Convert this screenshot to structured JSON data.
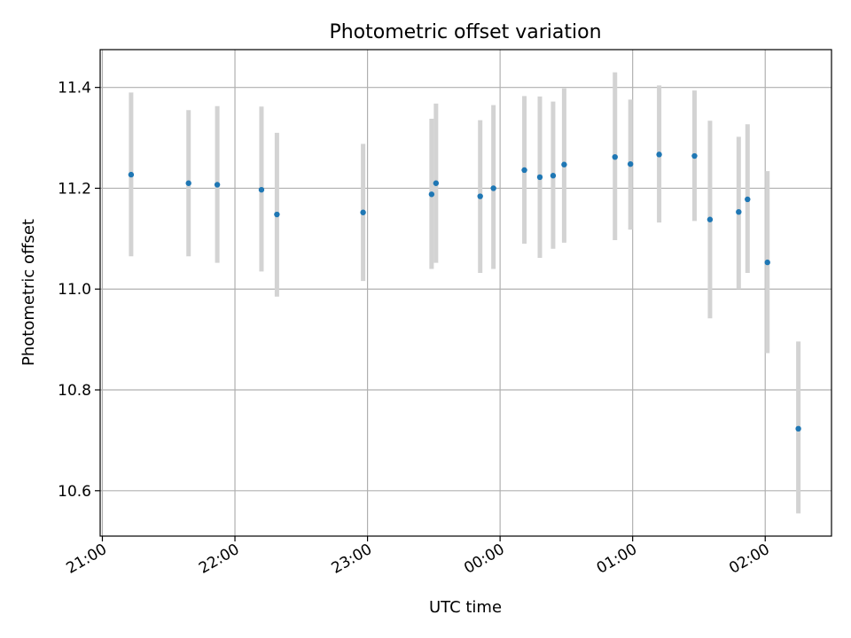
{
  "chart_data": {
    "type": "scatter",
    "title": "Photometric offset variation",
    "xlabel": "UTC time",
    "ylabel": "Photometric offset",
    "xlim": [
      "20:59",
      "02:30"
    ],
    "ylim": [
      10.51,
      11.475
    ],
    "xticks": [
      {
        "t": "21:00",
        "label": "21:00"
      },
      {
        "t": "22:00",
        "label": "22:00"
      },
      {
        "t": "23:00",
        "label": "23:00"
      },
      {
        "t": "00:00",
        "label": "00:00"
      },
      {
        "t": "01:00",
        "label": "01:00"
      },
      {
        "t": "02:00",
        "label": "02:00"
      }
    ],
    "yticks": [
      {
        "v": 10.6,
        "label": "10.6"
      },
      {
        "v": 10.8,
        "label": "10.8"
      },
      {
        "v": 11.0,
        "label": "11.0"
      },
      {
        "v": 11.2,
        "label": "11.2"
      },
      {
        "v": 11.4,
        "label": "11.4"
      }
    ],
    "grid": true,
    "x_time_order": [
      "20:59",
      "21:00",
      "22:00",
      "23:00",
      "00:00",
      "01:00",
      "02:00",
      "02:30"
    ],
    "points": [
      {
        "t": "21:13",
        "y": 11.227,
        "lo": 11.065,
        "hi": 11.39
      },
      {
        "t": "21:39",
        "y": 11.21,
        "lo": 11.065,
        "hi": 11.355
      },
      {
        "t": "21:52",
        "y": 11.207,
        "lo": 11.052,
        "hi": 11.363
      },
      {
        "t": "22:12",
        "y": 11.197,
        "lo": 11.035,
        "hi": 11.362
      },
      {
        "t": "22:19",
        "y": 11.148,
        "lo": 10.985,
        "hi": 11.31
      },
      {
        "t": "22:58",
        "y": 11.152,
        "lo": 11.016,
        "hi": 11.288
      },
      {
        "t": "23:29",
        "y": 11.188,
        "lo": 11.04,
        "hi": 11.338
      },
      {
        "t": "23:31",
        "y": 11.21,
        "lo": 11.052,
        "hi": 11.368
      },
      {
        "t": "23:51",
        "y": 11.184,
        "lo": 11.032,
        "hi": 11.335
      },
      {
        "t": "23:57",
        "y": 11.2,
        "lo": 11.04,
        "hi": 11.365
      },
      {
        "t": "00:11",
        "y": 11.236,
        "lo": 11.09,
        "hi": 11.383
      },
      {
        "t": "00:18",
        "y": 11.222,
        "lo": 11.062,
        "hi": 11.382
      },
      {
        "t": "00:24",
        "y": 11.225,
        "lo": 11.08,
        "hi": 11.372
      },
      {
        "t": "00:29",
        "y": 11.247,
        "lo": 11.092,
        "hi": 11.398
      },
      {
        "t": "00:52",
        "y": 11.262,
        "lo": 11.097,
        "hi": 11.43
      },
      {
        "t": "00:59",
        "y": 11.248,
        "lo": 11.118,
        "hi": 11.376
      },
      {
        "t": "01:12",
        "y": 11.267,
        "lo": 11.132,
        "hi": 11.404
      },
      {
        "t": "01:28",
        "y": 11.264,
        "lo": 11.135,
        "hi": 11.394
      },
      {
        "t": "01:35",
        "y": 11.138,
        "lo": 10.942,
        "hi": 11.334
      },
      {
        "t": "01:48",
        "y": 11.153,
        "lo": 11.0,
        "hi": 11.302
      },
      {
        "t": "01:52",
        "y": 11.178,
        "lo": 11.032,
        "hi": 11.327
      },
      {
        "t": "02:01",
        "y": 11.053,
        "lo": 10.873,
        "hi": 11.234
      },
      {
        "t": "02:15",
        "y": 10.723,
        "lo": 10.555,
        "hi": 10.896
      }
    ],
    "colors": {
      "point": "#1f77b4",
      "errorbar": "#d3d3d3",
      "grid": "#b0b0b0",
      "axes": "#000000"
    }
  }
}
